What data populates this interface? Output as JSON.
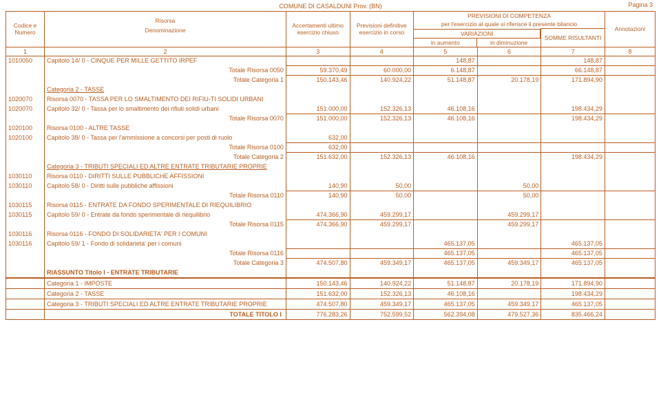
{
  "header": {
    "title": "COMUNE DI CASALDUNI Prov. (BN)",
    "pagina": "Pagina  3",
    "col_labels": {
      "codice": "Codice e Numero",
      "risorsa": "Risorsa",
      "denominazione": "Denominazione",
      "accert": "Accertamenti ultimo esercizio chiuso",
      "prev_def": "Previsioni definitive esercizio in corso",
      "prev_comp": "PREVISIONI DI COMPETENZA",
      "per_eserc": "per l'esercizio al quale si riferisce il presente bilancio",
      "variazioni": "VARIAZIONI",
      "in_aumento": "in aumento",
      "in_diminuzione": "in diminuzione",
      "somme": "SOMME RISULTANTI",
      "annot": "Annotazioni"
    },
    "nums": [
      "1",
      "2",
      "3",
      "4",
      "5",
      "6",
      "7",
      "8"
    ]
  },
  "rows": [
    {
      "t": "line",
      "code": "1010050",
      "desc": "Capitolo    14/  0 - CINQUE PER MILLE GETTITO IRPEF",
      "v": [
        "",
        "",
        "148,87",
        "",
        "148,87",
        ""
      ]
    },
    {
      "t": "tot",
      "label": "Totale Risorsa 0050",
      "v": [
        "59.370,49",
        "60.000,00",
        "6.148,87",
        "",
        "66.148,87",
        ""
      ]
    },
    {
      "t": "tot",
      "label": "Totale Categoria 1",
      "v": [
        "150.143,46",
        "140.924,22",
        "51.148,87",
        "20.178,19",
        "171.894,90",
        ""
      ]
    },
    {
      "t": "cat",
      "desc": "Categoria 2  - TASSE"
    },
    {
      "t": "line",
      "code": "1020070",
      "desc": "Risorsa 0070  - TASSA PER LO SMALTIMENTO DEI RIFIU-TI SOLIDI URBANI",
      "v": [
        "",
        "",
        "",
        "",
        "",
        ""
      ]
    },
    {
      "t": "line",
      "code": "1020070",
      "desc": "Capitolo    32/  0 - Tassa per lo smaltimento dei rifiuti solidi urbani",
      "v": [
        "151.000,00",
        "152.326,13",
        "46.108,16",
        "",
        "198.434,29",
        ""
      ]
    },
    {
      "t": "tot",
      "label": "Totale Risorsa 0070",
      "v": [
        "151.000,00",
        "152.326,13",
        "46.108,16",
        "",
        "198.434,29",
        ""
      ]
    },
    {
      "t": "line",
      "code": "1020100",
      "desc": "Risorsa 0100  - ALTRE TASSE",
      "v": [
        "",
        "",
        "",
        "",
        "",
        ""
      ]
    },
    {
      "t": "line",
      "code": "1020100",
      "desc": "Capitolo    38/  0 - Tassa per l'ammissione a concorsi per posti di ruolo",
      "v": [
        "632,00",
        "",
        "",
        "",
        "",
        ""
      ]
    },
    {
      "t": "tot",
      "label": "Totale Risorsa 0100",
      "v": [
        "632,00",
        "",
        "",
        "",
        "",
        ""
      ]
    },
    {
      "t": "tot",
      "label": "Totale Categoria 2",
      "v": [
        "151.632,00",
        "152.326,13",
        "46.108,16",
        "",
        "198.434,29",
        ""
      ]
    },
    {
      "t": "cat",
      "desc": "Categoria 3  - TRIBUTI SPECIALI ED ALTRE ENTRATE TRIBUTARIE PROPRIE"
    },
    {
      "t": "line",
      "code": "1030110",
      "desc": "Risorsa 0110  - DIRITTI SULLE PUBBLICHE AFFISSIONI",
      "v": [
        "",
        "",
        "",
        "",
        "",
        ""
      ]
    },
    {
      "t": "line",
      "code": "1030110",
      "desc": "Capitolo    58/  0 - Diritti sulle pubbliche affissioni",
      "v": [
        "140,90",
        "50,00",
        "",
        "50,00",
        "",
        ""
      ]
    },
    {
      "t": "tot",
      "label": "Totale Risorsa 0110",
      "v": [
        "140,90",
        "50,00",
        "",
        "50,00",
        "",
        ""
      ]
    },
    {
      "t": "line",
      "code": "1030115",
      "desc": "Risorsa 0115  - ENTRATE DA FONDO SPERIMENTALE DI RIEQUILIBRIO",
      "v": [
        "",
        "",
        "",
        "",
        "",
        ""
      ]
    },
    {
      "t": "line",
      "code": "1030115",
      "desc": "Capitolo    59/  0 - Entrate da fondo sperimentale di riequilibrio",
      "v": [
        "474.366,90",
        "459.299,17",
        "",
        "459.299,17",
        "",
        ""
      ]
    },
    {
      "t": "tot",
      "label": "Totale Risorsa 0115",
      "v": [
        "474.366,90",
        "459.299,17",
        "",
        "459.299,17",
        "",
        ""
      ]
    },
    {
      "t": "line",
      "code": "1030116",
      "desc": "Risorsa 0116  - FONDO DI SOLIDARIETA' PER I COMUNI",
      "v": [
        "",
        "",
        "",
        "",
        "",
        ""
      ]
    },
    {
      "t": "line",
      "code": "1030116",
      "desc": "Capitolo    59/  1 - Fondo di solidarieta' per i comuni",
      "v": [
        "",
        "",
        "465.137,05",
        "",
        "465.137,05",
        ""
      ]
    },
    {
      "t": "tot",
      "label": "Totale Risorsa 0116",
      "v": [
        "",
        "",
        "465.137,05",
        "",
        "465.137,05",
        ""
      ]
    },
    {
      "t": "tot",
      "label": "Totale Categoria 3",
      "v": [
        "474.507,80",
        "459.349,17",
        "465.137,05",
        "459.349,17",
        "465.137,05",
        ""
      ]
    },
    {
      "t": "riass-title",
      "desc": "RIASSUNTO Titolo I  - ENTRATE TRIBUTARIE"
    }
  ],
  "riassunto": [
    {
      "desc": "Categoria 1 - IMPOSTE",
      "v": [
        "150.143,46",
        "140.924,22",
        "51.148,87",
        "20.178,19",
        "171.894,90",
        ""
      ]
    },
    {
      "desc": "Categoria 2 - TASSE",
      "v": [
        "151.632,00",
        "152.326,13",
        "46.108,16",
        "",
        "198.434,29",
        ""
      ]
    },
    {
      "desc": "Categoria 3 - TRIBUTI SPECIALI ED ALTRE ENTRATE TRIBUTARIE PROPRIE",
      "v": [
        "474.507,80",
        "459.349,17",
        "465.137,05",
        "459.349,17",
        "465.137,05",
        ""
      ]
    },
    {
      "desc": "TOTALE TITOLO I",
      "bold": true,
      "v": [
        "776.283,26",
        "752.599,52",
        "562.394,08",
        "479.527,36",
        "835.466,24",
        ""
      ]
    }
  ]
}
